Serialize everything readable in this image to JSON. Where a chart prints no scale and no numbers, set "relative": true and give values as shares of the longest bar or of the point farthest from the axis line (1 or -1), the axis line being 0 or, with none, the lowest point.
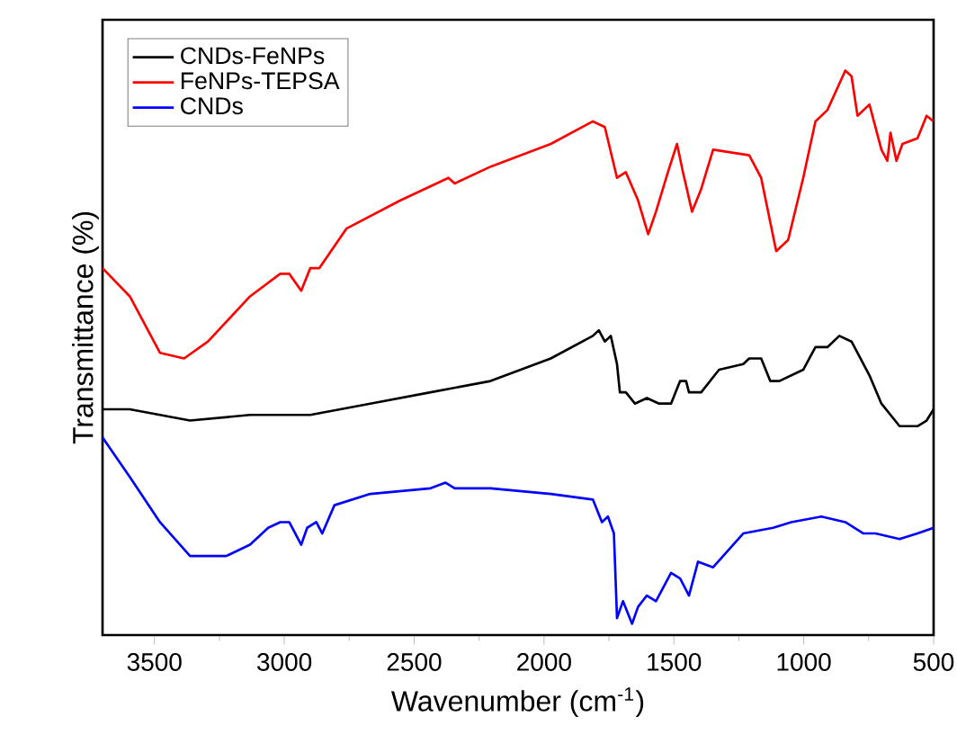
{
  "chart_data": {
    "type": "line",
    "relative": true,
    "xlabel": "Wavenumber (cm$^{-1}$)",
    "ylabel": "Transmittance (%)",
    "xlim": [
      3700,
      500
    ],
    "xticks": [
      3500,
      3000,
      2500,
      2000,
      1500,
      1000,
      500
    ],
    "legend": "top left",
    "marker": "none",
    "line_style": "solid",
    "grid": false,
    "series": [
      {
        "name": "CNDs-FeNPs",
        "color": "#000000",
        "x": [
          3700,
          3595,
          3363,
          3132,
          2946,
          2900,
          2669,
          2437,
          2206,
          1974,
          1812,
          1789,
          1766,
          1743,
          1719,
          1708,
          1685,
          1650,
          1604,
          1557,
          1511,
          1476,
          1453,
          1442,
          1395,
          1326,
          1233,
          1210,
          1164,
          1129,
          1094,
          1002,
          955,
          909,
          863,
          816,
          747,
          701,
          631,
          562,
          527,
          500
        ],
        "values": [
          0.4,
          0.4,
          0.38,
          0.39,
          0.39,
          0.39,
          0.41,
          0.43,
          0.45,
          0.49,
          0.53,
          0.54,
          0.52,
          0.53,
          0.48,
          0.43,
          0.43,
          0.41,
          0.42,
          0.41,
          0.41,
          0.45,
          0.45,
          0.43,
          0.43,
          0.47,
          0.48,
          0.49,
          0.49,
          0.45,
          0.45,
          0.47,
          0.51,
          0.51,
          0.53,
          0.52,
          0.46,
          0.41,
          0.37,
          0.37,
          0.38,
          0.4
        ]
      },
      {
        "name": "FeNPs-TEPSA",
        "color": "#ff0000",
        "x": [
          3700,
          3595,
          3479,
          3386,
          3294,
          3132,
          3016,
          2981,
          2935,
          2900,
          2865,
          2761,
          2553,
          2368,
          2344,
          2205,
          1974,
          1812,
          1766,
          1719,
          1685,
          1638,
          1599,
          1569,
          1523,
          1488,
          1465,
          1430,
          1395,
          1349,
          1210,
          1164,
          1106,
          1060,
          1002,
          955,
          909,
          840,
          816,
          793,
          747,
          701,
          678,
          666,
          643,
          620,
          562,
          527,
          500
        ],
        "values": [
          0.65,
          0.6,
          0.5,
          0.49,
          0.52,
          0.6,
          0.64,
          0.64,
          0.61,
          0.65,
          0.65,
          0.72,
          0.77,
          0.81,
          0.8,
          0.83,
          0.87,
          0.91,
          0.9,
          0.81,
          0.82,
          0.77,
          0.71,
          0.75,
          0.82,
          0.87,
          0.82,
          0.75,
          0.79,
          0.86,
          0.85,
          0.81,
          0.68,
          0.7,
          0.81,
          0.91,
          0.93,
          1.0,
          0.99,
          0.92,
          0.94,
          0.86,
          0.84,
          0.89,
          0.84,
          0.87,
          0.88,
          0.92,
          0.91
        ]
      },
      {
        "name": "CNDs",
        "color": "#0000ff",
        "x": [
          3700,
          3595,
          3479,
          3363,
          3224,
          3132,
          3062,
          3016,
          2981,
          2935,
          2912,
          2877,
          2854,
          2807,
          2669,
          2437,
          2379,
          2344,
          2206,
          1974,
          1812,
          1777,
          1754,
          1731,
          1719,
          1696,
          1661,
          1638,
          1604,
          1569,
          1511,
          1476,
          1442,
          1407,
          1349,
          1233,
          1118,
          1048,
          932,
          840,
          770,
          724,
          631,
          562,
          500
        ],
        "values": [
          0.35,
          0.28,
          0.2,
          0.14,
          0.14,
          0.16,
          0.19,
          0.2,
          0.2,
          0.16,
          0.19,
          0.2,
          0.18,
          0.23,
          0.25,
          0.26,
          0.27,
          0.26,
          0.26,
          0.25,
          0.24,
          0.2,
          0.21,
          0.18,
          0.03,
          0.06,
          0.02,
          0.05,
          0.07,
          0.06,
          0.11,
          0.1,
          0.07,
          0.13,
          0.12,
          0.18,
          0.19,
          0.2,
          0.21,
          0.2,
          0.18,
          0.18,
          0.17,
          0.18,
          0.19
        ]
      }
    ]
  }
}
